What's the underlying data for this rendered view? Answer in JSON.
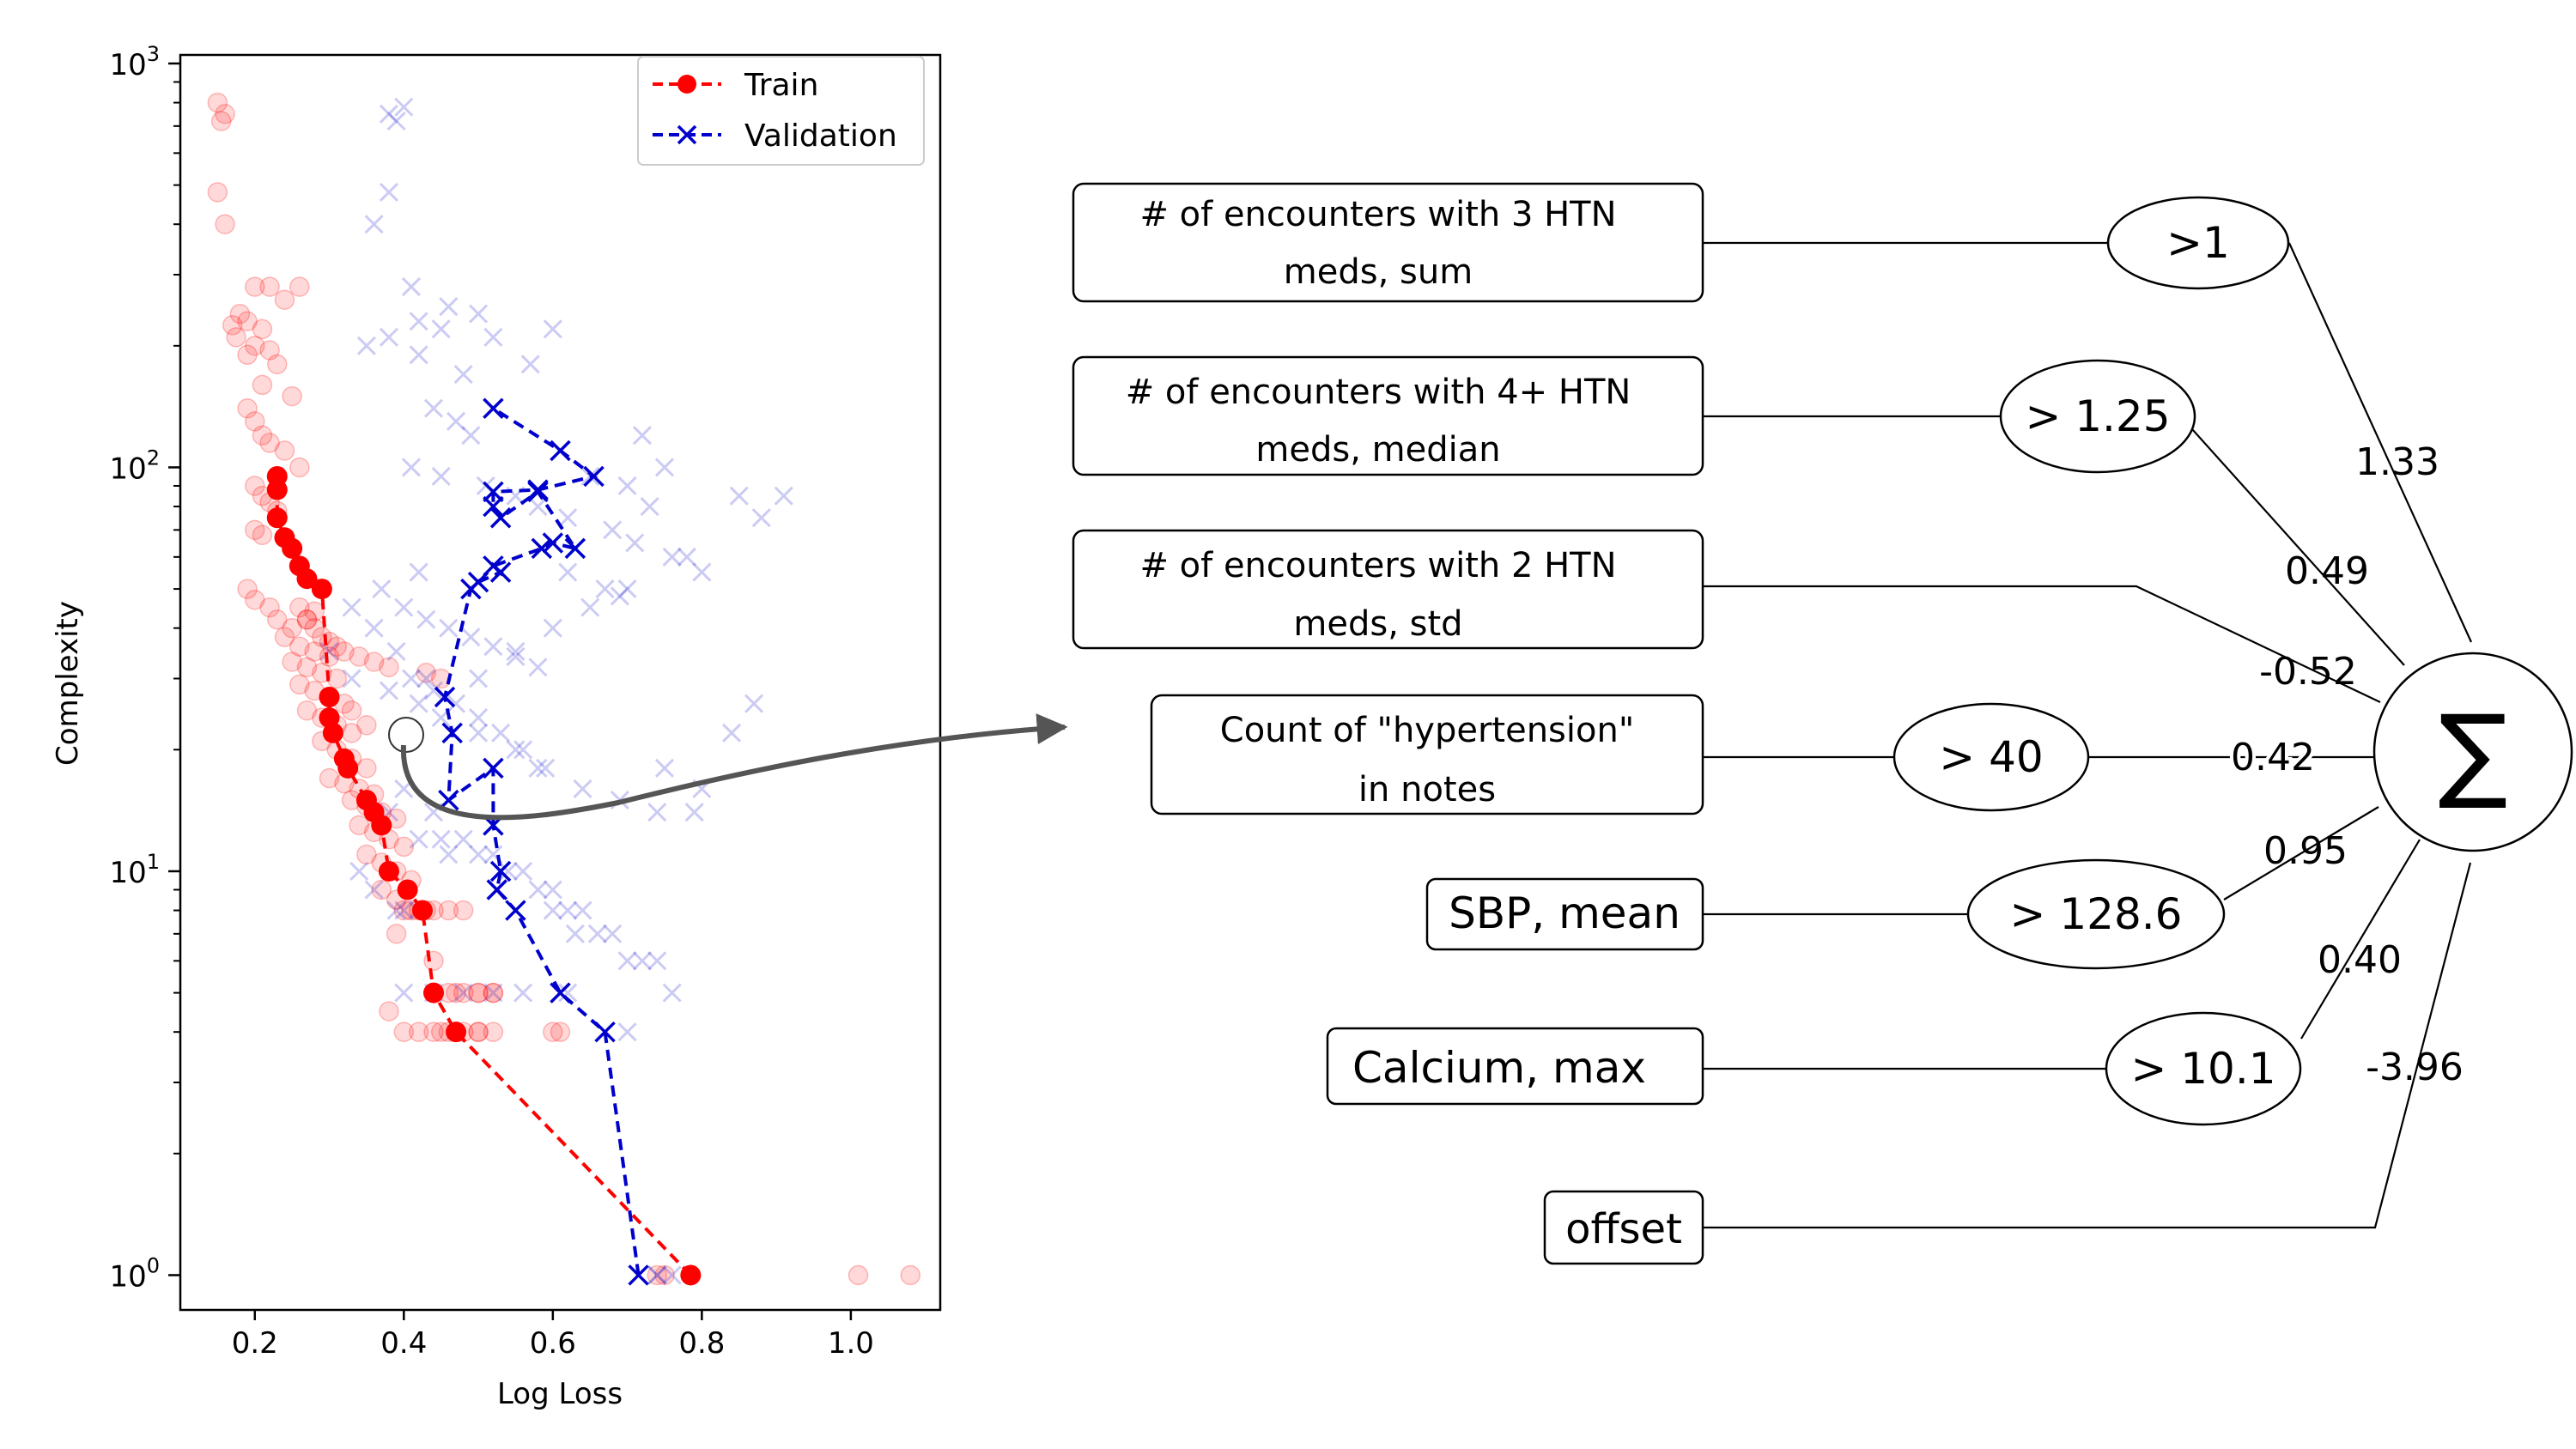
{
  "chart_data": [
    {
      "type": "scatter",
      "xlabel": "Log Loss",
      "ylabel": "Complexity",
      "x_scale": "linear",
      "y_scale": "log",
      "xlim": [
        0.1,
        1.12
      ],
      "ylim": [
        0.82,
        1050
      ],
      "x_ticks": [
        0.2,
        0.4,
        0.6,
        0.8,
        1.0
      ],
      "x_tick_labels": [
        "0.2",
        "0.4",
        "0.6",
        "0.8",
        "1.0"
      ],
      "y_ticks": [
        1,
        10,
        100,
        1000
      ],
      "y_tick_labels": [
        {
          "base": "10",
          "exp": "0"
        },
        {
          "base": "10",
          "exp": "1"
        },
        {
          "base": "10",
          "exp": "2"
        },
        {
          "base": "10",
          "exp": "3"
        }
      ],
      "legend": {
        "position": "top-right",
        "entries": [
          {
            "label": "Train",
            "color": "#ff0000",
            "marker": "circle",
            "line": "dashed"
          },
          {
            "label": "Validation",
            "color": "#0000cc",
            "marker": "x",
            "line": "dashed"
          }
        ]
      },
      "series": [
        {
          "name": "Train",
          "color": "#ff0000",
          "marker": "circle",
          "line": "dashed",
          "x": [
            0.785,
            0.47,
            0.44,
            0.425,
            0.405,
            0.38,
            0.37,
            0.36,
            0.35,
            0.325,
            0.32,
            0.305,
            0.3,
            0.3,
            0.29,
            0.27,
            0.26,
            0.25,
            0.24,
            0.23,
            0.23,
            0.23
          ],
          "y": [
            1,
            4,
            5,
            8,
            9,
            10,
            13,
            14,
            15,
            18,
            19,
            22,
            24,
            27,
            50,
            53,
            57,
            63,
            67,
            75,
            88,
            95
          ]
        },
        {
          "name": "Validation",
          "color": "#0000cc",
          "marker": "x",
          "line": "dashed",
          "x": [
            0.715,
            0.67,
            0.61,
            0.55,
            0.525,
            0.53,
            0.52,
            0.52,
            0.46,
            0.465,
            0.455,
            0.49,
            0.5,
            0.53,
            0.52,
            0.585,
            0.6,
            0.63,
            0.58,
            0.53,
            0.52,
            0.52,
            0.58,
            0.655,
            0.61,
            0.52
          ],
          "y": [
            1,
            4,
            5,
            8,
            9,
            10,
            13,
            18,
            15,
            22,
            27,
            50,
            52,
            55,
            57,
            63,
            65,
            63,
            87,
            75,
            80,
            87,
            88,
            95,
            110,
            140
          ]
        },
        {
          "name": "Train (all models)",
          "color": "#ff0000",
          "marker": "circle",
          "opacity": 0.15,
          "x": [
            0.15,
            0.16,
            0.155,
            0.15,
            0.16,
            0.2,
            0.22,
            0.24,
            0.26,
            0.18,
            0.19,
            0.21,
            0.17,
            0.175,
            0.19,
            0.2,
            0.22,
            0.23,
            0.21,
            0.25,
            0.19,
            0.2,
            0.21,
            0.22,
            0.24,
            0.26,
            0.2,
            0.21,
            0.22,
            0.23,
            0.2,
            0.21,
            0.19,
            0.2,
            0.22,
            0.23,
            0.25,
            0.27,
            0.28,
            0.24,
            0.26,
            0.28,
            0.3,
            0.25,
            0.27,
            0.29,
            0.31,
            0.26,
            0.28,
            0.3,
            0.32,
            0.27,
            0.29,
            0.31,
            0.33,
            0.29,
            0.31,
            0.33,
            0.35,
            0.3,
            0.32,
            0.34,
            0.36,
            0.33,
            0.35,
            0.37,
            0.39,
            0.34,
            0.36,
            0.38,
            0.4,
            0.35,
            0.37,
            0.39,
            0.41,
            0.37,
            0.39,
            0.41,
            0.43,
            0.4,
            0.42,
            0.44,
            0.46,
            0.48,
            0.39,
            0.44,
            0.47,
            0.5,
            0.52,
            0.38,
            0.4,
            0.42,
            0.44,
            0.46,
            0.48,
            0.5,
            0.46,
            0.48,
            0.5,
            0.52,
            0.45,
            0.5,
            0.52,
            0.6,
            0.61,
            0.74,
            0.75,
            1.01,
            1.08,
            0.26,
            0.27,
            0.28,
            0.29,
            0.3,
            0.31,
            0.32,
            0.34,
            0.36,
            0.38,
            0.43,
            0.45,
            0.33,
            0.35
          ],
          "y": [
            800,
            750,
            720,
            480,
            400,
            280,
            280,
            260,
            280,
            240,
            230,
            220,
            225,
            210,
            190,
            200,
            195,
            180,
            160,
            150,
            140,
            130,
            120,
            115,
            110,
            100,
            90,
            85,
            82,
            78,
            70,
            68,
            50,
            47,
            45,
            42,
            40,
            42,
            44,
            38,
            36,
            35,
            34,
            33,
            32,
            31,
            30,
            29,
            28,
            27,
            26,
            25,
            24,
            23,
            22,
            21,
            20,
            19,
            18,
            17,
            16.5,
            16,
            15.5,
            15,
            14.5,
            14,
            13.5,
            13,
            12.5,
            12,
            11.5,
            11,
            10.5,
            10,
            9.5,
            9,
            8.5,
            8,
            8,
            8,
            8,
            8,
            8,
            8,
            7,
            6,
            5,
            5,
            5,
            4.5,
            4,
            4,
            4,
            4,
            4,
            4,
            5,
            5,
            5,
            5,
            4,
            4,
            4,
            4,
            4,
            1,
            1,
            1,
            1,
            45,
            42,
            40,
            38,
            37,
            36,
            35,
            34,
            33,
            32,
            31,
            30,
            25,
            23
          ]
        },
        {
          "name": "Validation (all models)",
          "color": "#0000cc",
          "marker": "x",
          "opacity": 0.15,
          "x": [
            0.38,
            0.39,
            0.4,
            0.36,
            0.38,
            0.41,
            0.42,
            0.45,
            0.46,
            0.5,
            0.52,
            0.6,
            0.57,
            0.35,
            0.38,
            0.42,
            0.48,
            0.44,
            0.47,
            0.49,
            0.41,
            0.45,
            0.51,
            0.55,
            0.58,
            0.62,
            0.68,
            0.71,
            0.78,
            0.8,
            0.85,
            0.88,
            0.91,
            0.75,
            0.72,
            0.65,
            0.7,
            0.73,
            0.76,
            0.62,
            0.67,
            0.69,
            0.4,
            0.43,
            0.46,
            0.49,
            0.52,
            0.55,
            0.58,
            0.41,
            0.44,
            0.47,
            0.5,
            0.53,
            0.56,
            0.59,
            0.64,
            0.69,
            0.74,
            0.79,
            0.84,
            0.87,
            0.5,
            0.55,
            0.6,
            0.65,
            0.7,
            0.75,
            0.8,
            0.38,
            0.42,
            0.46,
            0.34,
            0.36,
            0.39,
            0.4,
            0.42,
            0.6,
            0.63,
            0.7,
            0.4,
            0.44,
            0.48,
            0.52,
            0.56,
            0.62,
            0.7,
            0.74,
            0.74,
            0.76,
            0.45,
            0.5,
            0.54,
            0.58,
            0.62,
            0.66,
            0.74,
            0.4,
            0.44,
            0.48,
            0.52,
            0.56,
            0.6,
            0.64,
            0.68,
            0.72,
            0.76,
            0.36,
            0.39,
            0.43,
            0.33,
            0.37,
            0.42,
            0.3,
            0.33,
            0.38,
            0.42,
            0.45,
            0.5,
            0.55,
            0.58
          ],
          "y": [
            750,
            720,
            780,
            400,
            480,
            280,
            230,
            220,
            250,
            240,
            210,
            220,
            180,
            200,
            210,
            190,
            170,
            140,
            130,
            120,
            100,
            95,
            90,
            85,
            80,
            75,
            70,
            65,
            60,
            55,
            85,
            75,
            85,
            100,
            120,
            95,
            90,
            80,
            60,
            55,
            50,
            48,
            45,
            42,
            40,
            38,
            36,
            34,
            32,
            30,
            28,
            26,
            24,
            22,
            20,
            18,
            16,
            15,
            14,
            14,
            22,
            26,
            30,
            35,
            40,
            45,
            50,
            18,
            16,
            14,
            12,
            11,
            10,
            9,
            8,
            8,
            8,
            8,
            7,
            6,
            5,
            5,
            5,
            5,
            5,
            5,
            4,
            1,
            1,
            1,
            12,
            11,
            10,
            9,
            8,
            7,
            6,
            16,
            14,
            12,
            11,
            10,
            9,
            8,
            7,
            6,
            5,
            40,
            35,
            30,
            45,
            50,
            55,
            35,
            30,
            28,
            26,
            24,
            22,
            20,
            18
          ]
        }
      ]
    },
    {
      "type": "diagram",
      "features": [
        {
          "label_lines": [
            "# of encounters with 3 HTN",
            "meds, sum"
          ],
          "threshold": ">1",
          "weight": "1.33"
        },
        {
          "label_lines": [
            "# of encounters with 4+ HTN",
            "meds, median"
          ],
          "threshold": "> 1.25",
          "weight": "0.49"
        },
        {
          "label_lines": [
            "# of encounters with 2 HTN",
            "meds, std"
          ],
          "threshold": "",
          "weight": "-0.52"
        },
        {
          "label_lines": [
            "Count of \"hypertension\"",
            "in notes"
          ],
          "threshold": "> 40",
          "weight": "0.42"
        },
        {
          "label_lines": [
            "SBP, mean"
          ],
          "threshold": "> 128.6",
          "weight": "0.95"
        },
        {
          "label_lines": [
            "Calcium, max"
          ],
          "threshold": "> 10.1",
          "weight": "0.40"
        },
        {
          "label_lines": [
            "offset"
          ],
          "threshold": "",
          "weight": "-3.96"
        }
      ],
      "sum_symbol": "∑"
    }
  ]
}
